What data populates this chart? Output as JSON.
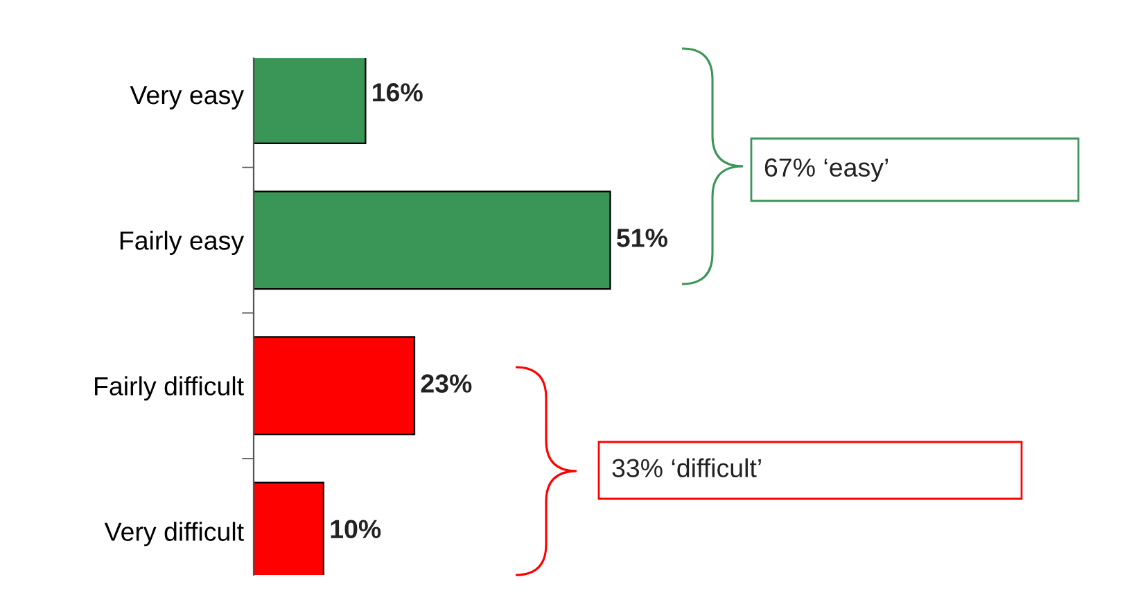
{
  "chart_data": {
    "type": "bar",
    "orientation": "horizontal",
    "categories": [
      "Very easy",
      "Fairly easy",
      "Fairly difficult",
      "Very difficult"
    ],
    "values": [
      16,
      51,
      23,
      10
    ],
    "colors": [
      "#3a9656",
      "#3a9656",
      "#ff0000",
      "#ff0000"
    ],
    "value_labels": [
      "16%",
      "51%",
      "23%",
      "10%"
    ],
    "annotations": [
      "67% ‘easy’",
      "33% ‘difficult’"
    ],
    "grid": false,
    "legend": false
  }
}
